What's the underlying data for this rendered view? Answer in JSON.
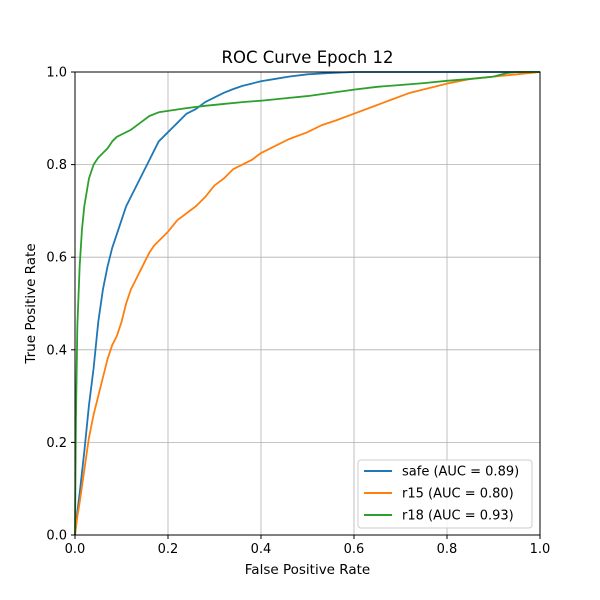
{
  "chart_data": {
    "type": "line",
    "title": "ROC Curve Epoch 12",
    "xlabel": "False Positive Rate",
    "ylabel": "True Positive Rate",
    "xlim": [
      0,
      1
    ],
    "ylim": [
      0,
      1
    ],
    "xticks": [
      "0.0",
      "0.2",
      "0.4",
      "0.6",
      "0.8",
      "1.0"
    ],
    "yticks": [
      "0.0",
      "0.2",
      "0.4",
      "0.6",
      "0.8",
      "1.0"
    ],
    "grid": true,
    "legend_position": "lower-right",
    "series": [
      {
        "name": "safe (AUC = 0.89)",
        "color": "#1f77b4",
        "x": [
          0,
          0.005,
          0.01,
          0.02,
          0.03,
          0.04,
          0.05,
          0.06,
          0.07,
          0.08,
          0.09,
          0.1,
          0.11,
          0.12,
          0.13,
          0.14,
          0.15,
          0.16,
          0.17,
          0.18,
          0.2,
          0.22,
          0.24,
          0.26,
          0.28,
          0.3,
          0.32,
          0.34,
          0.36,
          0.38,
          0.4,
          0.43,
          0.46,
          0.5,
          0.55,
          0.6,
          0.65,
          0.7,
          0.8,
          0.9,
          1.0
        ],
        "y": [
          0,
          0.05,
          0.09,
          0.18,
          0.28,
          0.36,
          0.46,
          0.53,
          0.58,
          0.62,
          0.65,
          0.68,
          0.71,
          0.73,
          0.75,
          0.77,
          0.79,
          0.81,
          0.83,
          0.85,
          0.87,
          0.89,
          0.91,
          0.92,
          0.935,
          0.945,
          0.955,
          0.963,
          0.97,
          0.975,
          0.98,
          0.985,
          0.99,
          0.995,
          0.998,
          1.0,
          1.0,
          1.0,
          1.0,
          1.0,
          1.0
        ]
      },
      {
        "name": "r15 (AUC = 0.80)",
        "color": "#ff7f0e",
        "x": [
          0,
          0.005,
          0.01,
          0.02,
          0.03,
          0.04,
          0.05,
          0.06,
          0.07,
          0.08,
          0.09,
          0.1,
          0.11,
          0.12,
          0.13,
          0.14,
          0.15,
          0.16,
          0.17,
          0.18,
          0.2,
          0.22,
          0.24,
          0.26,
          0.28,
          0.3,
          0.32,
          0.34,
          0.36,
          0.38,
          0.4,
          0.43,
          0.46,
          0.5,
          0.53,
          0.56,
          0.6,
          0.64,
          0.68,
          0.72,
          0.76,
          0.8,
          0.85,
          0.9,
          0.95,
          1.0
        ],
        "y": [
          0,
          0.04,
          0.07,
          0.14,
          0.21,
          0.26,
          0.3,
          0.34,
          0.38,
          0.41,
          0.43,
          0.46,
          0.5,
          0.53,
          0.55,
          0.57,
          0.59,
          0.61,
          0.625,
          0.635,
          0.655,
          0.68,
          0.695,
          0.71,
          0.73,
          0.755,
          0.77,
          0.79,
          0.8,
          0.81,
          0.825,
          0.84,
          0.855,
          0.87,
          0.885,
          0.895,
          0.91,
          0.925,
          0.94,
          0.955,
          0.965,
          0.975,
          0.985,
          0.99,
          0.995,
          1.0
        ]
      },
      {
        "name": "r18 (AUC = 0.93)",
        "color": "#2ca02c",
        "x": [
          0,
          0.002,
          0.005,
          0.01,
          0.015,
          0.02,
          0.025,
          0.03,
          0.04,
          0.05,
          0.06,
          0.07,
          0.08,
          0.09,
          0.1,
          0.12,
          0.14,
          0.16,
          0.18,
          0.2,
          0.24,
          0.28,
          0.32,
          0.36,
          0.4,
          0.45,
          0.5,
          0.55,
          0.6,
          0.65,
          0.7,
          0.75,
          0.8,
          0.85,
          0.9,
          0.93,
          0.95,
          1.0
        ],
        "y": [
          0,
          0.25,
          0.45,
          0.58,
          0.66,
          0.71,
          0.74,
          0.77,
          0.8,
          0.815,
          0.825,
          0.835,
          0.85,
          0.86,
          0.865,
          0.875,
          0.89,
          0.905,
          0.913,
          0.916,
          0.922,
          0.927,
          0.931,
          0.935,
          0.938,
          0.943,
          0.948,
          0.955,
          0.962,
          0.968,
          0.972,
          0.976,
          0.981,
          0.985,
          0.99,
          0.998,
          1.0,
          1.0
        ]
      }
    ]
  }
}
